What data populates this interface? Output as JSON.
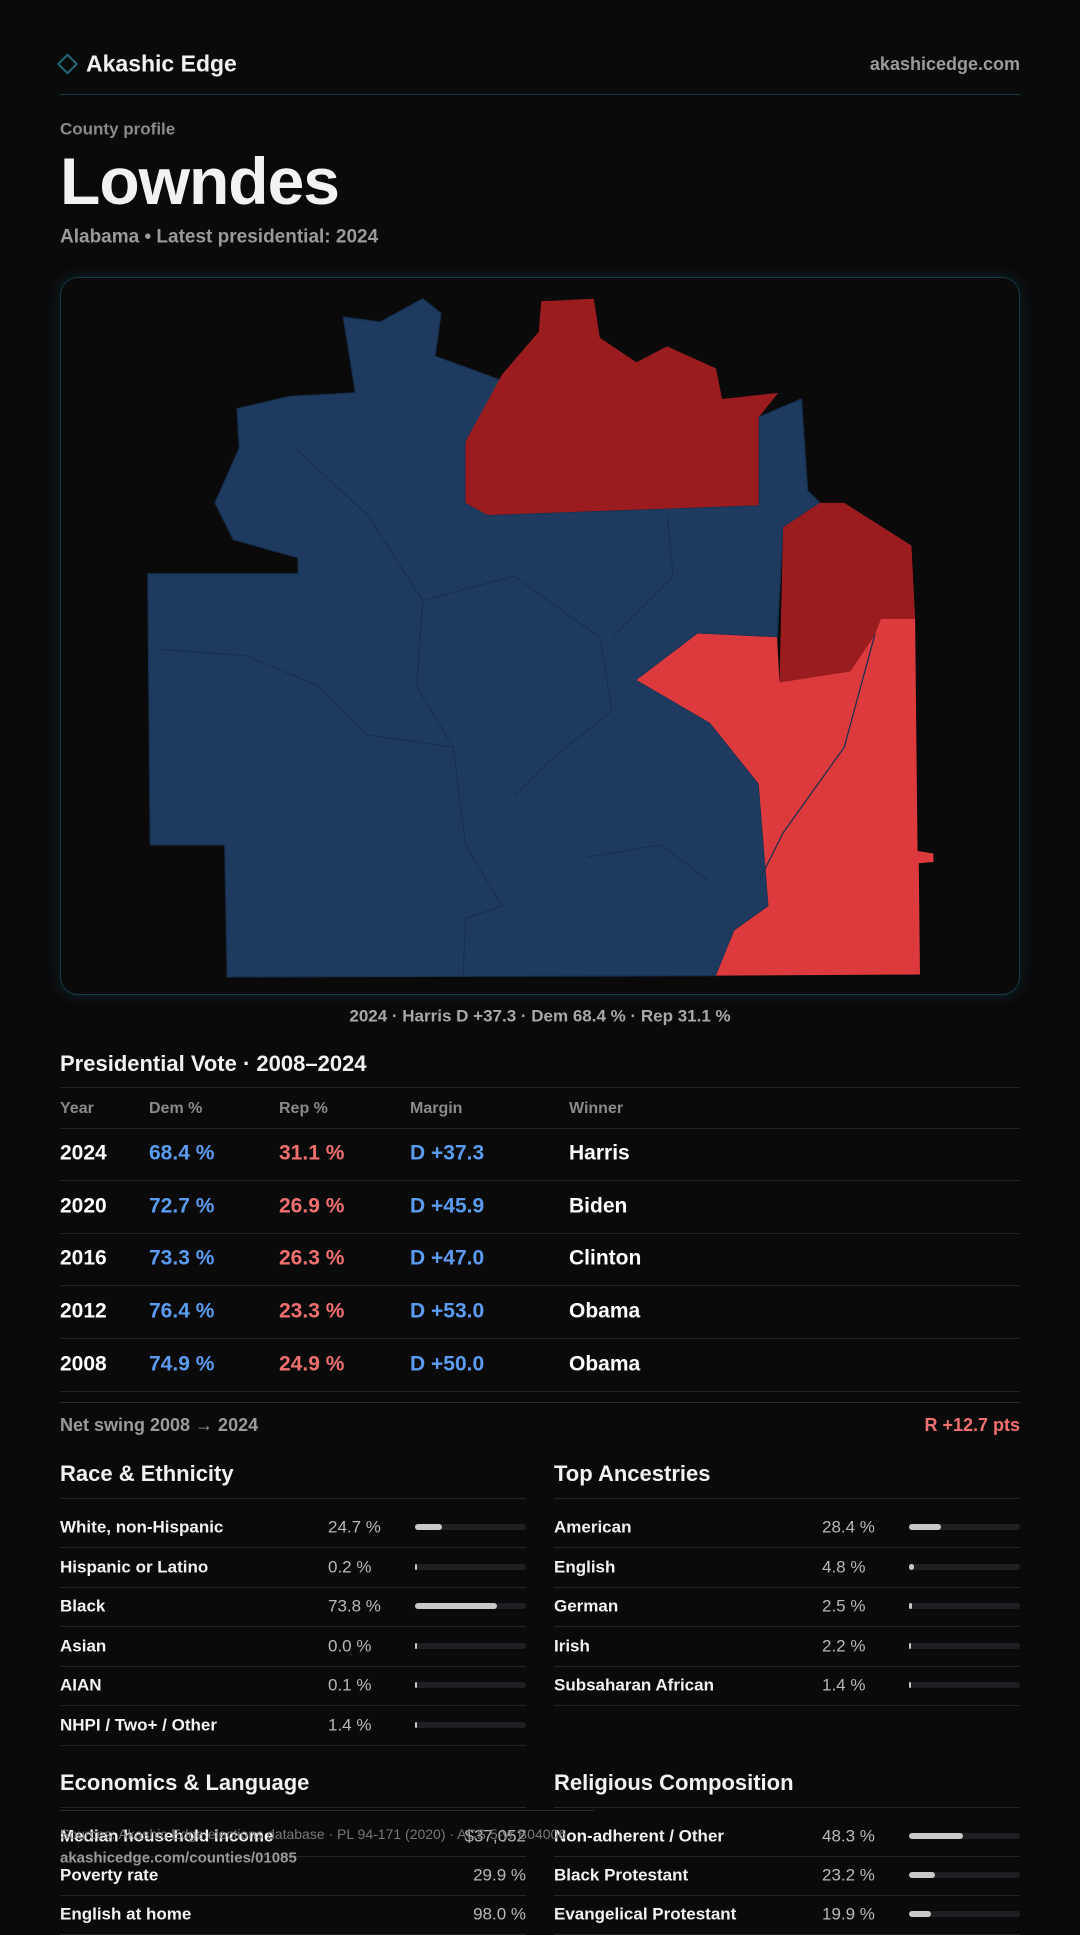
{
  "header": {
    "brand": "Akashic Edge",
    "site": "akashicedge.com"
  },
  "profile": {
    "kicker": "County profile",
    "title": "Lowndes",
    "subtitle": "Alabama • Latest presidential: 2024"
  },
  "map": {
    "caption": "2024 · Harris D +37.3 · Dem 68.4 % · Rep 31.1 %"
  },
  "votes": {
    "title": "Presidential Vote · 2008–2024",
    "columns": [
      "Year",
      "Dem %",
      "Rep %",
      "Margin",
      "Winner"
    ],
    "rows": [
      [
        "2024",
        "68.4 %",
        "31.1 %",
        "D +37.3",
        "Harris"
      ],
      [
        "2020",
        "72.7 %",
        "26.9 %",
        "D +45.9",
        "Biden"
      ],
      [
        "2016",
        "73.3 %",
        "26.3 %",
        "D +47.0",
        "Clinton"
      ],
      [
        "2012",
        "76.4 %",
        "23.3 %",
        "D +53.0",
        "Obama"
      ],
      [
        "2008",
        "74.9 %",
        "24.9 %",
        "D +50.0",
        "Obama"
      ]
    ],
    "swing_label": "Net swing 2008 → 2024",
    "swing_value": "R +12.7 pts"
  },
  "race": {
    "title": "Race & Ethnicity",
    "rows": [
      {
        "label": "White, non-Hispanic",
        "value": 24.7,
        "value_label": "24.7 %"
      },
      {
        "label": "Hispanic or Latino",
        "value": 0.2,
        "value_label": "0.2 %"
      },
      {
        "label": "Black",
        "value": 73.8,
        "value_label": "73.8 %"
      },
      {
        "label": "Asian",
        "value": 0.0,
        "value_label": "0.0 %"
      },
      {
        "label": "AIAN",
        "value": 0.1,
        "value_label": "0.1 %"
      },
      {
        "label": "NHPI / Two+ / Other",
        "value": 1.4,
        "value_label": "1.4 %"
      }
    ]
  },
  "ancestry": {
    "title": "Top Ancestries",
    "rows": [
      {
        "label": "American",
        "value": 28.4,
        "value_label": "28.4 %"
      },
      {
        "label": "English",
        "value": 4.8,
        "value_label": "4.8 %"
      },
      {
        "label": "German",
        "value": 2.5,
        "value_label": "2.5 %"
      },
      {
        "label": "Irish",
        "value": 2.2,
        "value_label": "2.2 %"
      },
      {
        "label": "Subsaharan African",
        "value": 1.4,
        "value_label": "1.4 %"
      }
    ]
  },
  "economics": {
    "title": "Economics & Language",
    "rows": [
      {
        "label": "Median household income",
        "value_label": "$37,052"
      },
      {
        "label": "Poverty rate",
        "value_label": "29.9 %"
      },
      {
        "label": "English at home",
        "value_label": "98.0 %"
      }
    ]
  },
  "religion": {
    "title": "Religious Composition",
    "rows": [
      {
        "label": "Non-adherent / Other",
        "value": 48.3,
        "value_label": "48.3 %"
      },
      {
        "label": "Black Protestant",
        "value": 23.2,
        "value_label": "23.2 %"
      },
      {
        "label": "Evangelical Protestant",
        "value": 19.9,
        "value_label": "19.9 %"
      }
    ]
  },
  "footer": {
    "source": "Sources: Akashic Edge elections database · PL 94-171 (2020) · ACS 5-yr B04006",
    "url": "akashicedge.com/counties/01085"
  }
}
